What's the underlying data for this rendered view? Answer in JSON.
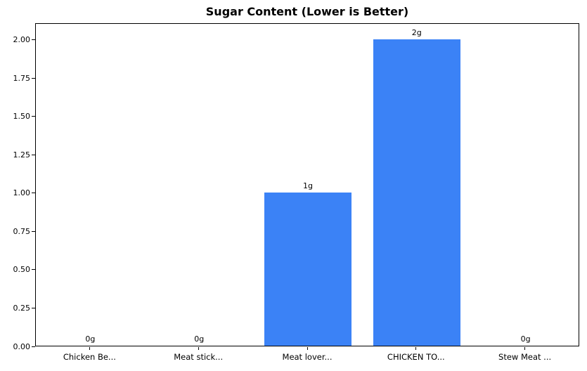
{
  "chart_data": {
    "type": "bar",
    "title": "Sugar Content (Lower is Better)",
    "categories": [
      "Chicken Be...",
      "Meat stick...",
      "Meat lover...",
      "CHICKEN TO...",
      "Stew Meat ..."
    ],
    "values": [
      0,
      0,
      1,
      2,
      0
    ],
    "bar_labels": [
      "0g",
      "0g",
      "1g",
      "2g",
      "0g"
    ],
    "xlabel": "",
    "ylabel": "",
    "ylim": [
      0,
      2.11
    ],
    "yticks": [
      0,
      0.25,
      0.5,
      0.75,
      1,
      1.25,
      1.5,
      1.75,
      2
    ],
    "ytick_labels": [
      "0.00",
      "0.25",
      "0.50",
      "0.75",
      "1.00",
      "1.25",
      "1.50",
      "1.75",
      "2.00"
    ],
    "bar_color": "#3b82f6",
    "axis_color": "#000000",
    "grid": false,
    "legend": false
  }
}
